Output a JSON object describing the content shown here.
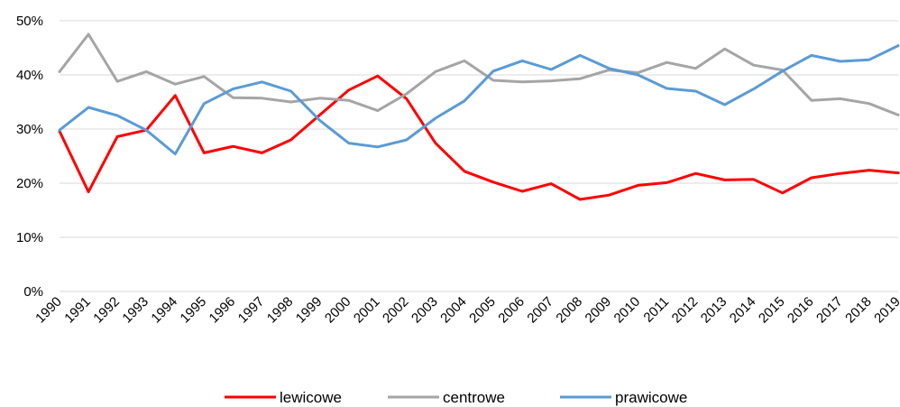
{
  "chart_data": {
    "type": "line",
    "title": "",
    "xlabel": "",
    "ylabel": "",
    "x": [
      1990,
      1991,
      1992,
      1993,
      1994,
      1995,
      1996,
      1997,
      1998,
      1999,
      2000,
      2001,
      2002,
      2003,
      2004,
      2005,
      2006,
      2007,
      2008,
      2009,
      2010,
      2011,
      2012,
      2013,
      2014,
      2015,
      2016,
      2017,
      2018,
      2019
    ],
    "x_tick_labels": [
      "1990",
      "1991",
      "1992",
      "1993",
      "1994",
      "1995",
      "1996",
      "1997",
      "1998",
      "1999",
      "2000",
      "2001",
      "2002",
      "2003",
      "2004",
      "2005",
      "2006",
      "2007",
      "2008",
      "2009",
      "2010",
      "2011",
      "2012",
      "2013",
      "2014",
      "2015",
      "2016",
      "2017",
      "2018",
      "2019"
    ],
    "y_tick_labels": [
      "0%",
      "10%",
      "20%",
      "30%",
      "40%",
      "50%"
    ],
    "ylim": [
      0,
      50
    ],
    "grid": "horizontal",
    "legend_position": "bottom",
    "series": [
      {
        "name": "lewicowe",
        "color": "#ff0000",
        "values": [
          29.6,
          18.4,
          28.6,
          29.8,
          36.2,
          25.6,
          26.8,
          25.6,
          28.0,
          32.6,
          37.2,
          39.8,
          35.6,
          27.4,
          22.2,
          20.2,
          18.5,
          19.9,
          17.0,
          17.8,
          19.6,
          20.1,
          21.8,
          20.6,
          20.7,
          18.2,
          21.0,
          21.8,
          22.4,
          21.9
        ]
      },
      {
        "name": "centrowe",
        "color": "#a5a5a5",
        "values": [
          40.6,
          47.5,
          38.8,
          40.6,
          38.3,
          39.7,
          35.8,
          35.7,
          35.0,
          35.7,
          35.3,
          33.4,
          36.5,
          40.6,
          42.6,
          39.0,
          38.7,
          38.9,
          39.3,
          40.9,
          40.4,
          42.3,
          41.2,
          44.8,
          41.8,
          40.9,
          35.3,
          35.6,
          34.7,
          32.6
        ]
      },
      {
        "name": "prawicowe",
        "color": "#5b9bd5",
        "values": [
          29.8,
          34.0,
          32.5,
          29.8,
          25.4,
          34.7,
          37.4,
          38.7,
          37.0,
          31.6,
          27.4,
          26.7,
          28.0,
          32.0,
          35.2,
          40.7,
          42.6,
          41.0,
          43.6,
          41.2,
          40.0,
          37.5,
          37.0,
          34.5,
          37.4,
          40.7,
          43.6,
          42.5,
          42.8,
          45.4
        ]
      }
    ]
  }
}
